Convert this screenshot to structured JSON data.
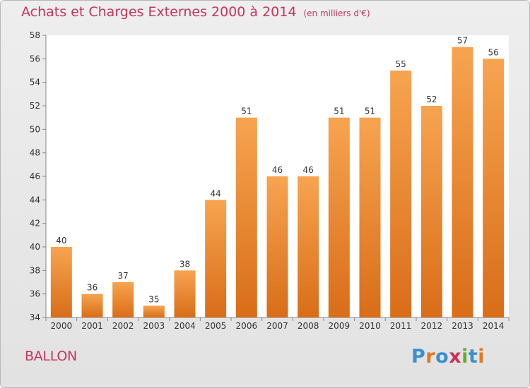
{
  "header": {
    "title": "Achats et Charges Externes 2000 à 2014",
    "unit": "(en milliers d'€)"
  },
  "footer": {
    "place": "BALLON",
    "logo": "Proxiti"
  },
  "colors": {
    "title": "#c8345c",
    "bar_top": "#f7a450",
    "bar_bottom": "#d96d18",
    "logo_letters": [
      "#3a8fd0",
      "#e8761a",
      "#3a8fd0",
      "#c8345c",
      "#6aa92a",
      "#3a8fd0",
      "#e8761a"
    ]
  },
  "chart_data": {
    "type": "bar",
    "title": "Achats et Charges Externes 2000 à 2014",
    "subtitle": "(en milliers d'€)",
    "categories": [
      "2000",
      "2001",
      "2002",
      "2003",
      "2004",
      "2005",
      "2006",
      "2007",
      "2008",
      "2009",
      "2010",
      "2011",
      "2012",
      "2013",
      "2014"
    ],
    "values": [
      40,
      36,
      37,
      35,
      38,
      44,
      51,
      46,
      46,
      51,
      51,
      55,
      52,
      57,
      56
    ],
    "ylim": [
      34,
      58
    ],
    "yticks": [
      34,
      36,
      38,
      40,
      42,
      44,
      46,
      48,
      50,
      52,
      54,
      56,
      58
    ],
    "grid": false,
    "data_labels": true
  }
}
